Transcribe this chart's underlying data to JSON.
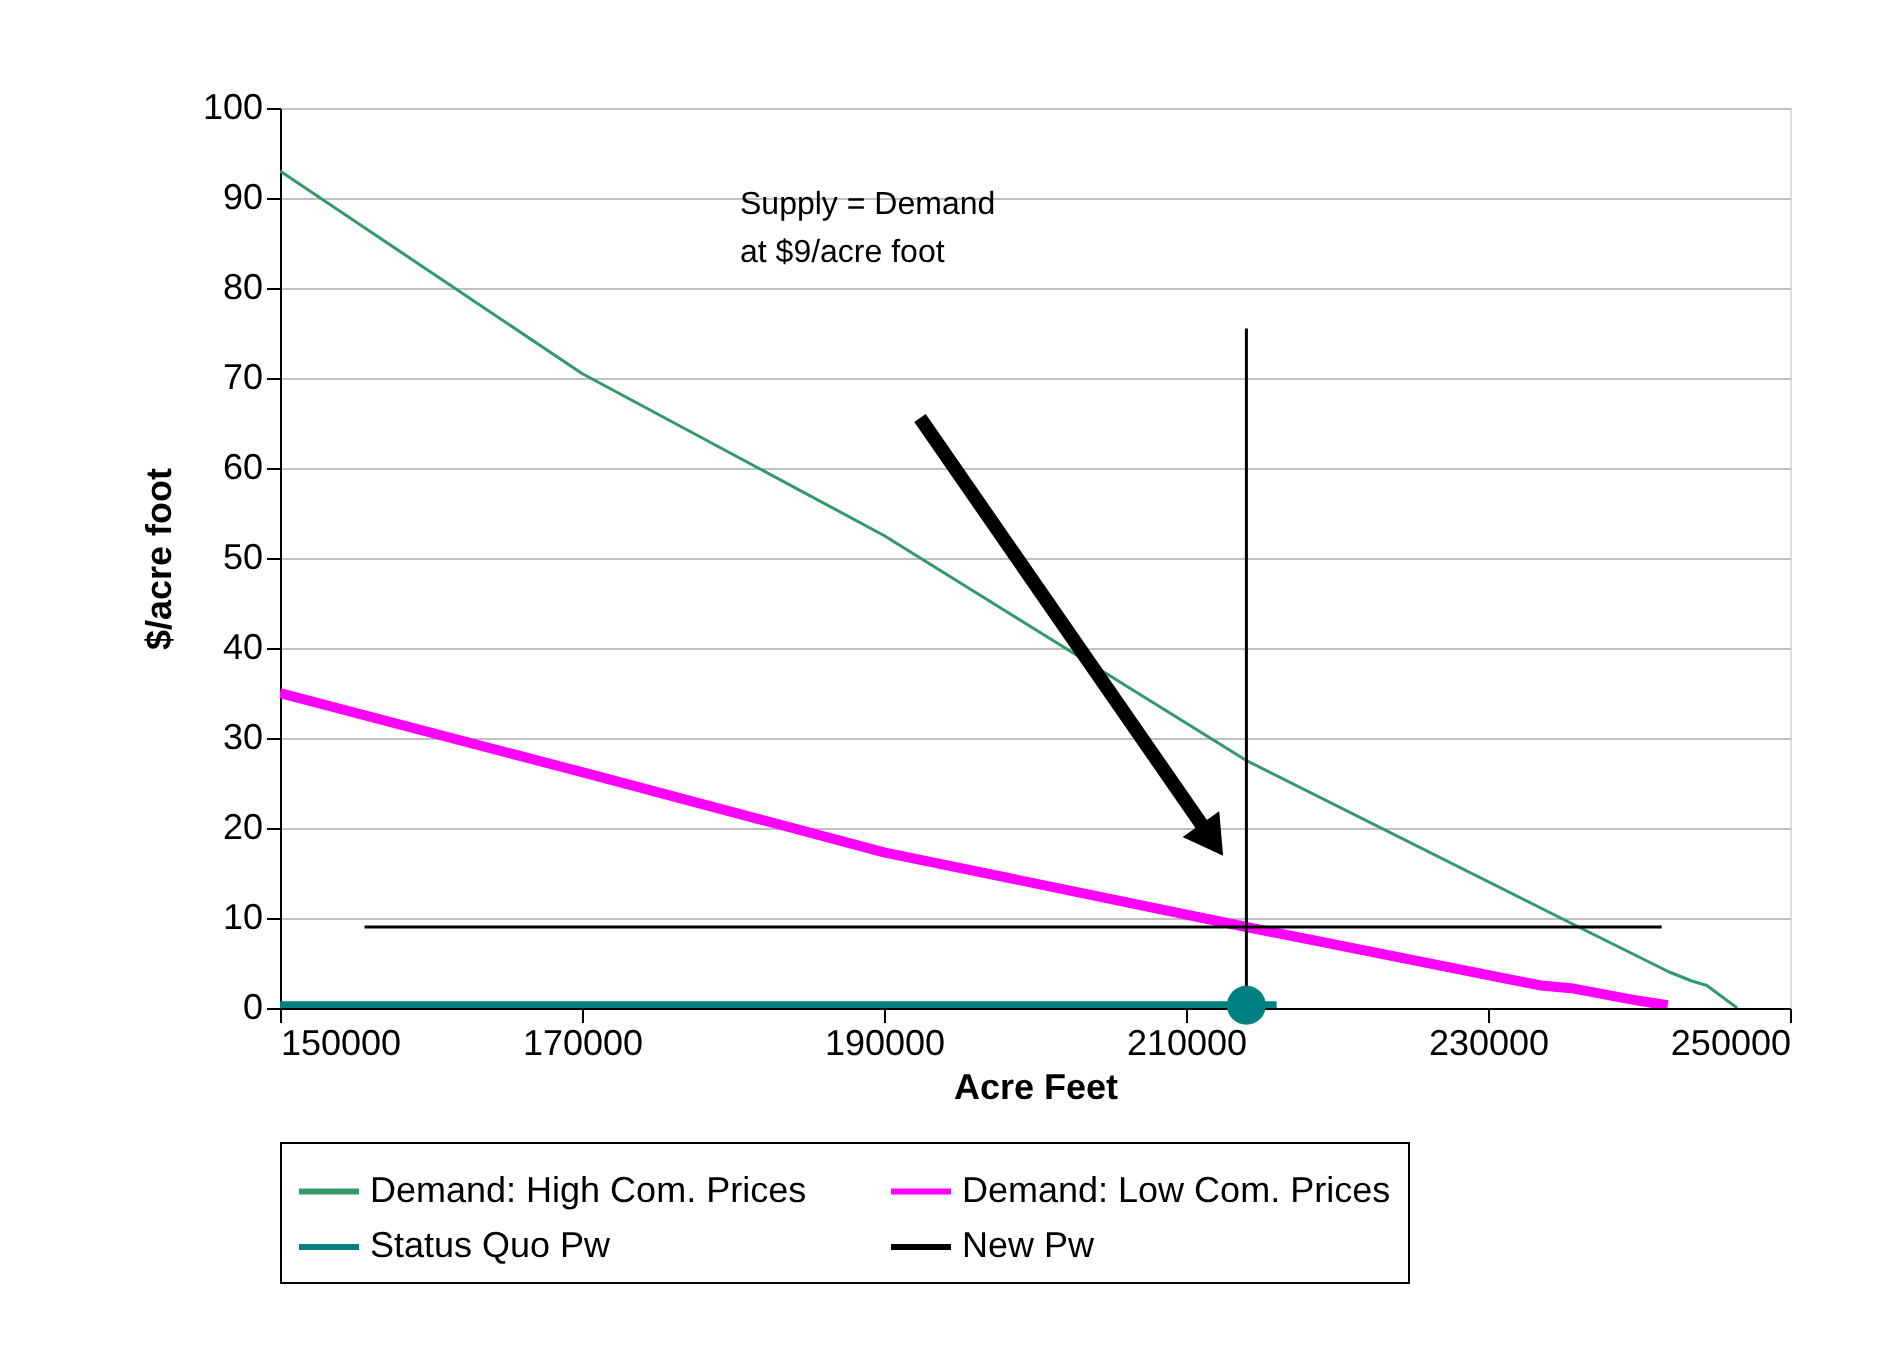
{
  "chart_data": {
    "type": "line",
    "xlabel": "Acre Feet",
    "ylabel": "$/acre foot",
    "xlim": [
      150000,
      250000
    ],
    "xticks": [
      150000,
      170000,
      190000,
      210000,
      230000,
      250000
    ],
    "ylim": [
      0,
      100
    ],
    "yticks": [
      0,
      10,
      20,
      30,
      40,
      50,
      60,
      70,
      80,
      90,
      100
    ],
    "grid": "y",
    "legend": "bottom",
    "line_style": "solid",
    "annotations": [
      "Supply = Demand\nat $9/acre foot"
    ],
    "series": [
      {
        "name": "Demand:  High Com. Prices",
        "color": "#339966",
        "x": [
          150000,
          170000,
          190000,
          214000,
          236000,
          242000,
          243500,
          244500,
          246500
        ],
        "values": [
          93,
          70.5,
          52.5,
          27.5,
          9,
          4,
          3,
          2.5,
          0
        ]
      },
      {
        "name": "Demand: Low Com. Prices",
        "color": "#ff00ff",
        "x": [
          150000,
          170000,
          190000,
          214000,
          233500,
          235500,
          240000,
          241900
        ],
        "values": [
          35,
          26.2,
          17.3,
          9,
          2.5,
          2.2,
          0.8,
          0.3
        ]
      },
      {
        "name": "Status Quo Pw",
        "color": "#008080",
        "x": [
          150000,
          216000
        ],
        "values": [
          0.3,
          0.3
        ]
      },
      {
        "name": "New Pw",
        "color": "#000000",
        "x": [
          155600,
          241500,
          null,
          214000,
          214000
        ],
        "values": [
          9,
          9,
          null,
          0,
          75.5
        ]
      },
      {
        "type": "scatter",
        "color": "#008080",
        "marker": "circle",
        "x": [
          214000
        ],
        "values": [
          0.3
        ]
      }
    ]
  }
}
